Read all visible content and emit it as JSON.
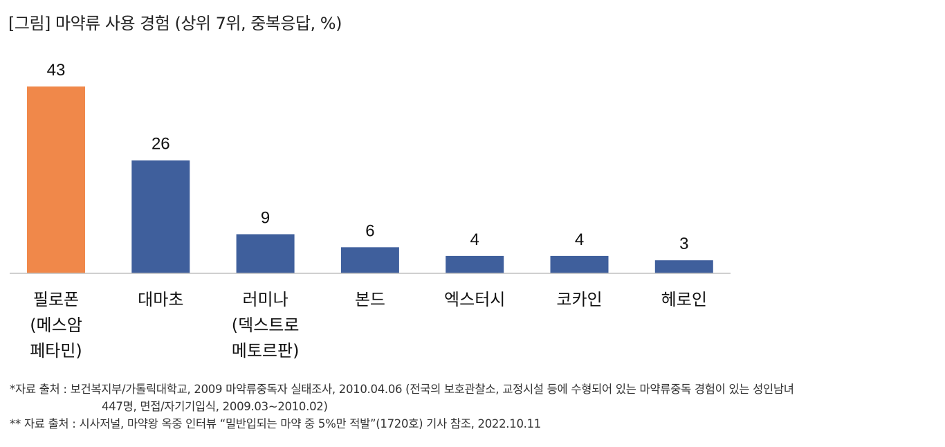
{
  "title": "[그림] 마약류 사용 경험 (상위 7위, 중복응답, %)",
  "chart_data": {
    "type": "bar",
    "categories": [
      [
        "필로폰",
        "(메스암",
        "페타민)"
      ],
      [
        "대마초"
      ],
      [
        "러미나",
        "(덱스트로",
        "메토르판)"
      ],
      [
        "본드"
      ],
      [
        "엑스터시"
      ],
      [
        "코카인"
      ],
      [
        "헤로인"
      ]
    ],
    "values": [
      43,
      26,
      9,
      6,
      4,
      4,
      3
    ],
    "value_labels": [
      "43",
      "26",
      "9",
      "6",
      "4",
      "4",
      "3"
    ],
    "colors": [
      "#F0884A",
      "#3F5F9C",
      "#3F5F9C",
      "#3F5F9C",
      "#3F5F9C",
      "#3F5F9C",
      "#3F5F9C"
    ],
    "ylim": [
      0,
      43
    ],
    "grid": false,
    "legend": "none"
  },
  "notes": {
    "line1": "*자료 출처 : 보건복지부/가톨릭대학교, 2009 마약류중독자 실태조사, 2010.04.06 (전국의 보호관찰소, 교정시설 등에 수형되어 있는 마약류중독 경험이 있는 성인남녀",
    "line1_cont": "447명, 면접/자기기입식, 2009.03~2010.02)",
    "line2": "** 자료 출처 : 시사저널, 마약왕 옥중 인터뷰 “밀반입되는 마약 중 5%만 적발”(1720호) 기사 참조, 2022.10.11"
  }
}
